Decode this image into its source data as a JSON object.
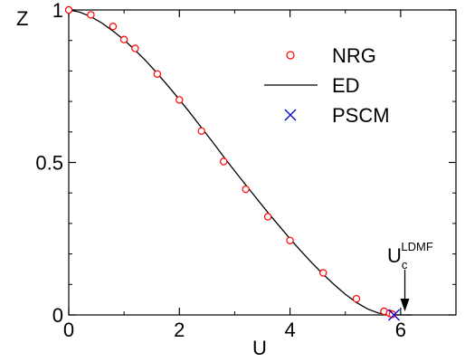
{
  "chart_data": {
    "type": "line",
    "title": "",
    "xlabel": "U",
    "ylabel": "Z",
    "xlim": [
      0,
      7
    ],
    "ylim": [
      0,
      1
    ],
    "x_ticks": [
      "0",
      "2",
      "4",
      "6"
    ],
    "x_tick_values": [
      0,
      2,
      4,
      6
    ],
    "y_ticks": [
      "0",
      "0.5",
      "1"
    ],
    "y_tick_values": [
      0,
      0.5,
      1
    ],
    "grid": false,
    "legend_position": "top-right",
    "series": [
      {
        "name": "NRG",
        "kind": "markers",
        "marker": "open-circle",
        "color": "#ff0000",
        "x": [
          0.0,
          0.4,
          0.8,
          1.0,
          1.2,
          1.6,
          2.0,
          2.4,
          2.8,
          3.2,
          3.6,
          4.0,
          4.6,
          5.2,
          5.7,
          5.8,
          5.85
        ],
        "y": [
          1.0,
          0.984,
          0.946,
          0.903,
          0.874,
          0.79,
          0.705,
          0.603,
          0.503,
          0.412,
          0.322,
          0.244,
          0.138,
          0.053,
          0.012,
          0.005,
          0.002
        ]
      },
      {
        "name": "ED",
        "kind": "line",
        "color": "#000000",
        "x": [
          0.0,
          0.2,
          0.4,
          0.6,
          0.8,
          1.0,
          1.2,
          1.4,
          1.6,
          1.8,
          2.0,
          2.2,
          2.4,
          2.6,
          2.8,
          3.0,
          3.2,
          3.4,
          3.6,
          3.8,
          4.0,
          4.2,
          4.4,
          4.6,
          4.8,
          5.0,
          5.2,
          5.4,
          5.6,
          5.8,
          5.9,
          6.0,
          6.2
        ],
        "y": [
          1.0,
          0.993,
          0.978,
          0.957,
          0.931,
          0.902,
          0.868,
          0.832,
          0.792,
          0.75,
          0.706,
          0.661,
          0.614,
          0.567,
          0.519,
          0.472,
          0.426,
          0.381,
          0.336,
          0.293,
          0.25,
          0.209,
          0.17,
          0.133,
          0.099,
          0.068,
          0.041,
          0.02,
          0.006,
          0.001,
          0.0,
          0.0,
          0.0
        ]
      },
      {
        "name": "PSCM",
        "kind": "markers",
        "marker": "cross",
        "color": "#0000cc",
        "x": [
          5.88
        ],
        "y": [
          0.0
        ]
      }
    ],
    "annotations": [
      {
        "text_main": "U",
        "text_sub": "c",
        "text_sup": "LDMF",
        "arrow_x": 5.88
      }
    ]
  }
}
